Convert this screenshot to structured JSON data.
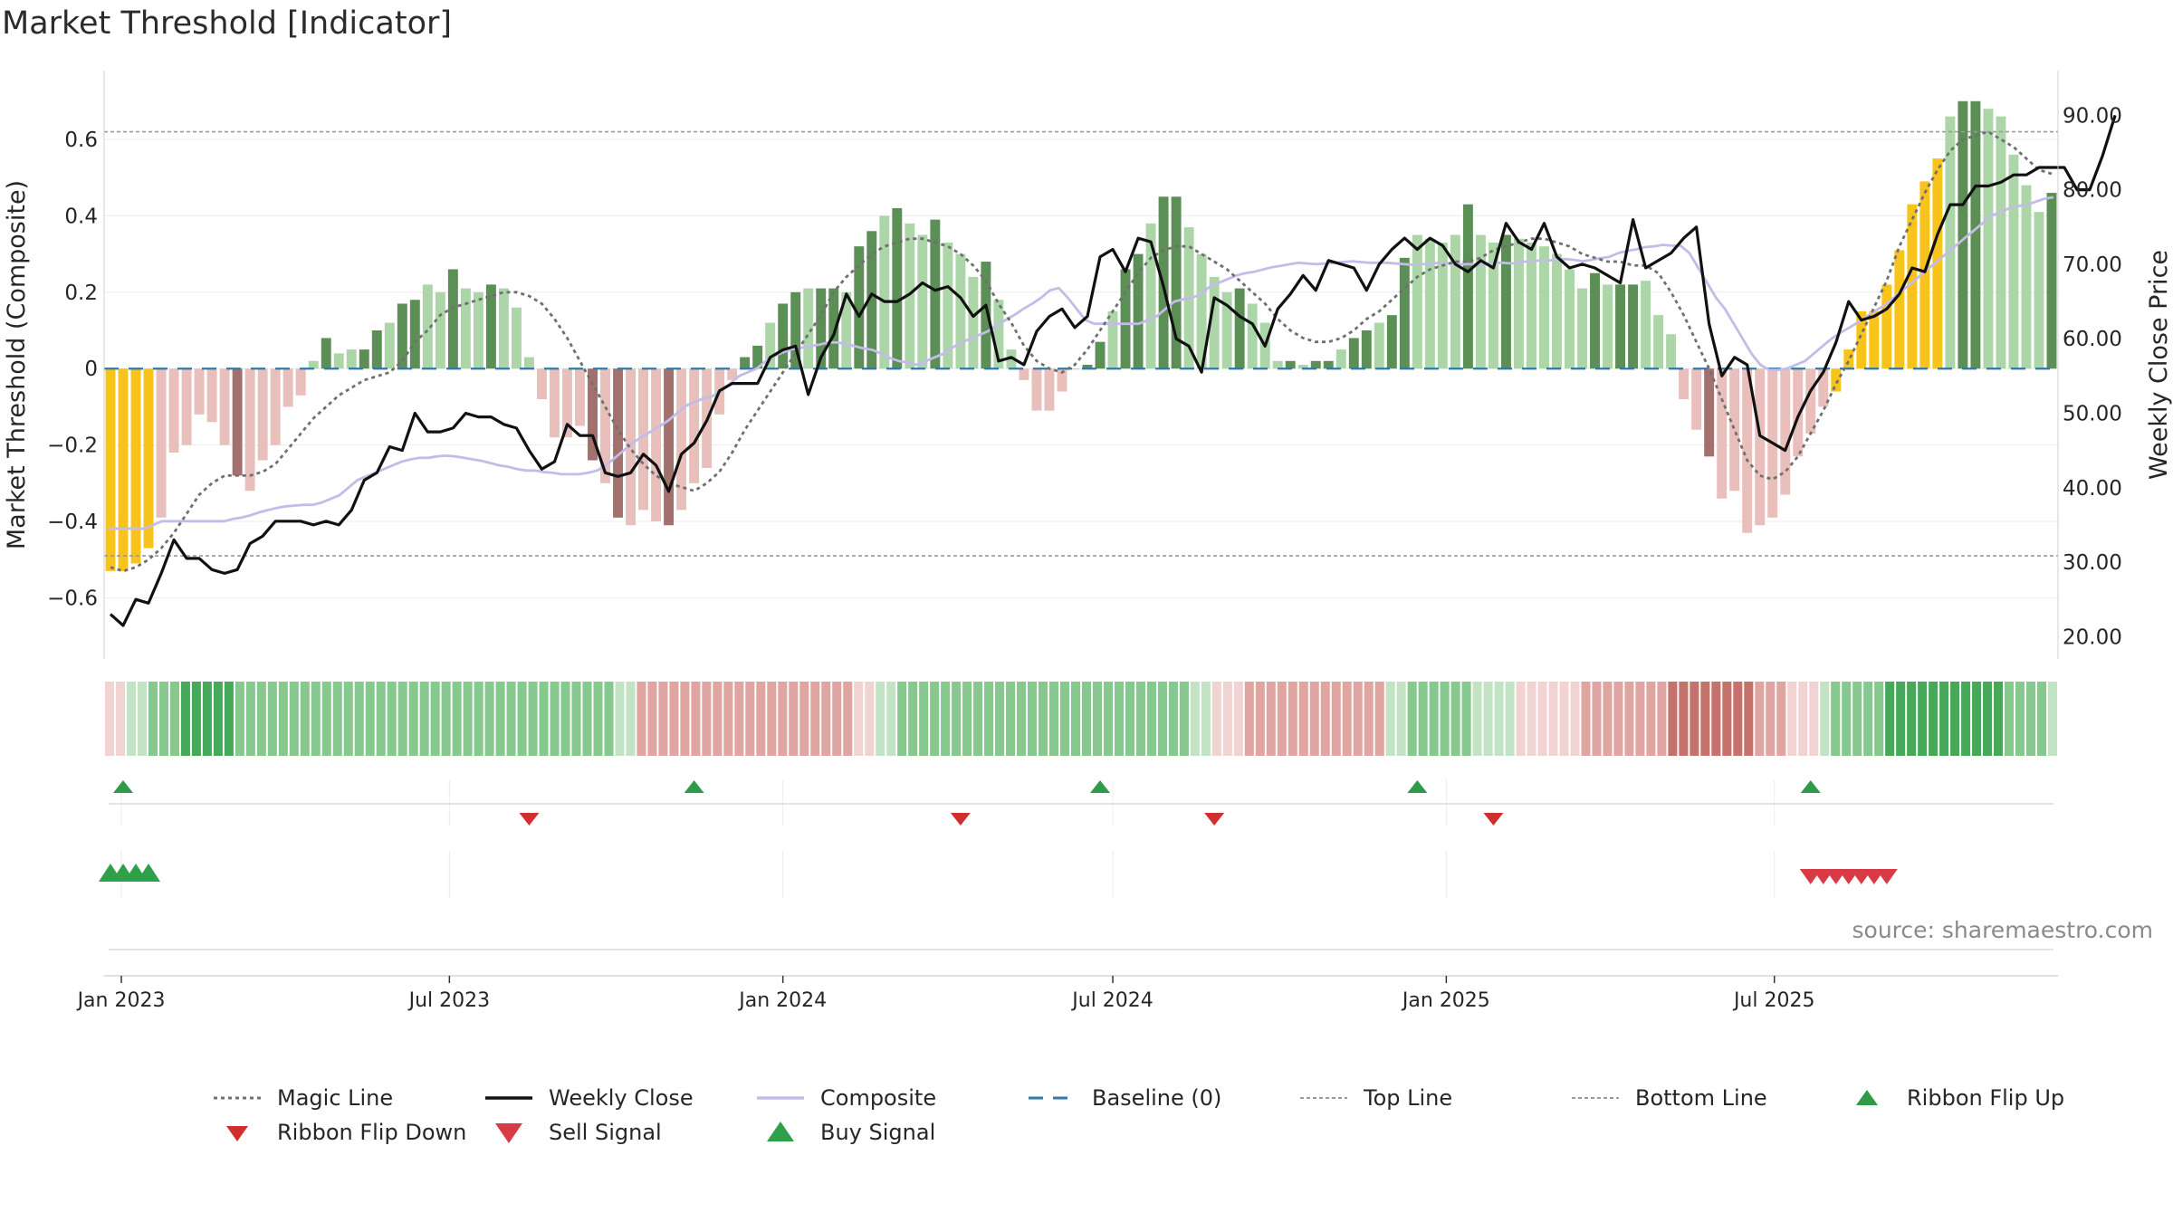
{
  "title": "Market Threshold [Indicator]",
  "source": "source: sharemaestro.com",
  "colors": {
    "gold": "#f8c31a",
    "pos_dark": "#5b8f56",
    "pos_light": "#acd6a8",
    "neg_dark": "#a3716d",
    "neg_light": "#e9bfbc",
    "weekly_close": "#111111",
    "composite": "#c4bce8",
    "magic_line": "#707070",
    "baseline": "#2f79a8",
    "flip_up": "#2f9a49",
    "flip_down": "#d12f2f",
    "sell_signal": "#d83b46",
    "buy_signal": "#2ea04a"
  },
  "chart_data": {
    "type": "bar",
    "title": "Market Threshold [Indicator]",
    "ylabel": "Market Threshold (Composite)",
    "y2label": "Weekly Close Price",
    "ylim": [
      -0.76,
      0.78
    ],
    "y2lim": [
      17,
      96
    ],
    "yticks": [
      0.6,
      0.4,
      0.2,
      0,
      -0.2,
      -0.4,
      -0.6
    ],
    "ytick_labels": [
      "0.6",
      "0.4",
      "0.2",
      "0",
      "−0.2",
      "−0.4",
      "−0.6"
    ],
    "y2ticks": [
      90,
      80,
      70,
      60,
      50,
      40,
      30,
      20
    ],
    "y2tick_labels": [
      "90.00",
      "80.00",
      "70.00",
      "60.00",
      "50.00",
      "40.00",
      "30.00",
      "20.00"
    ],
    "top_line": 0.62,
    "bottom_line": -0.49,
    "x_start": "2022-12-26",
    "xticks": [
      {
        "date": "2023-01-01",
        "label": "Jan 2023"
      },
      {
        "date": "2023-07-01",
        "label": "Jul 2023"
      },
      {
        "date": "2024-01-01",
        "label": "Jan 2024"
      },
      {
        "date": "2024-07-01",
        "label": "Jul 2024"
      },
      {
        "date": "2025-01-01",
        "label": "Jan 2025"
      },
      {
        "date": "2025-07-01",
        "label": "Jul 2025"
      }
    ],
    "composite_bars": [
      -0.53,
      -0.53,
      -0.51,
      -0.47,
      -0.39,
      -0.22,
      -0.2,
      -0.12,
      -0.14,
      -0.2,
      -0.28,
      -0.32,
      -0.24,
      -0.2,
      -0.1,
      -0.07,
      0.02,
      0.08,
      0.04,
      0.05,
      0.05,
      0.1,
      0.12,
      0.17,
      0.18,
      0.22,
      0.2,
      0.26,
      0.21,
      0.2,
      0.22,
      0.21,
      0.16,
      0.03,
      -0.08,
      -0.18,
      -0.18,
      -0.15,
      -0.24,
      -0.3,
      -0.39,
      -0.41,
      -0.37,
      -0.4,
      -0.41,
      -0.37,
      -0.3,
      -0.26,
      -0.12,
      -0.03,
      0.03,
      0.06,
      0.12,
      0.17,
      0.2,
      0.21,
      0.21,
      0.21,
      0.2,
      0.32,
      0.36,
      0.4,
      0.42,
      0.38,
      0.35,
      0.39,
      0.33,
      0.3,
      0.24,
      0.28,
      0.18,
      0.05,
      -0.03,
      -0.11,
      -0.11,
      -0.06,
      0,
      0.01,
      0.07,
      0.15,
      0.26,
      0.3,
      0.38,
      0.45,
      0.45,
      0.37,
      0.3,
      0.24,
      0.2,
      0.21,
      0.17,
      0.12,
      0.02,
      0.02,
      0.01,
      0.02,
      0.02,
      0.05,
      0.08,
      0.1,
      0.12,
      0.14,
      0.29,
      0.35,
      0.34,
      0.33,
      0.35,
      0.43,
      0.35,
      0.33,
      0.35,
      0.34,
      0.33,
      0.32,
      0.3,
      0.26,
      0.21,
      0.25,
      0.22,
      0.22,
      0.22,
      0.23,
      0.14,
      0.09,
      -0.08,
      -0.16,
      -0.23,
      -0.34,
      -0.32,
      -0.43,
      -0.41,
      -0.39,
      -0.33,
      -0.23,
      -0.17,
      -0.1,
      -0.06,
      0.05,
      0.15,
      0.15,
      0.22,
      0.31,
      0.43,
      0.49,
      0.55,
      0.66,
      0.7,
      0.7,
      0.68,
      0.66,
      0.56,
      0.48,
      0.41,
      0.46
    ],
    "weekly_close": [
      23,
      21.5,
      25,
      24.5,
      28.5,
      33,
      30.5,
      30.5,
      29,
      28.5,
      29,
      32.5,
      33.5,
      35.5,
      35.5,
      35.5,
      35,
      35.5,
      35,
      37,
      41,
      42,
      45.5,
      45,
      50,
      47.5,
      47.5,
      48,
      50,
      49.5,
      49.5,
      48.5,
      48,
      45,
      42.5,
      43.5,
      48.5,
      47,
      47,
      42,
      41.5,
      42,
      44.5,
      43,
      39.5,
      44.5,
      46,
      49,
      53,
      54,
      54,
      54,
      57.5,
      58.5,
      59,
      52.5,
      57.5,
      60.5,
      66,
      63,
      66,
      65,
      65,
      66,
      67.5,
      66.5,
      67,
      65.5,
      63,
      64.5,
      57,
      57.5,
      56.5,
      61,
      63,
      64,
      61.5,
      63,
      71,
      72,
      69,
      73.5,
      73,
      67,
      60,
      59,
      55.5,
      65.5,
      64.5,
      63,
      62,
      59,
      64,
      66,
      68.5,
      66.5,
      70.5,
      70,
      69.5,
      66.5,
      70,
      72,
      73.5,
      72,
      73.5,
      72.5,
      70,
      69,
      70.5,
      69.5,
      75.5,
      73,
      72,
      75.5,
      71,
      69.5,
      70,
      69.5,
      68.5,
      67.5,
      76,
      69.5,
      70.5,
      71.5,
      73.5,
      75,
      62,
      55,
      57.5,
      56.5,
      47,
      46,
      45,
      49.5,
      53,
      55.5,
      59.5,
      65,
      62.5,
      63,
      64,
      66,
      69.5,
      69,
      74,
      78,
      78,
      80.5,
      80.5,
      81,
      82,
      82,
      83,
      83,
      83,
      80,
      80,
      84.5,
      90
    ],
    "composite_line": [
      34.5,
      34.5,
      34.5,
      34.5,
      34.5,
      35,
      35.5,
      35.5,
      35.5,
      35.5,
      35.5,
      35.5,
      35.5,
      35.5,
      35.8,
      36,
      36.3,
      36.7,
      37,
      37.3,
      37.5,
      37.6,
      37.7,
      37.7,
      38,
      38.5,
      39,
      40,
      41,
      41.5,
      42,
      42.5,
      43,
      43.5,
      43.8,
      44,
      44,
      44.2,
      44.3,
      44.2,
      44,
      43.8,
      43.6,
      43.3,
      43,
      42.8,
      42.5,
      42.3,
      42.3,
      42.1,
      42,
      41.8,
      41.8,
      41.8,
      42,
      42.3,
      43,
      44,
      45,
      46,
      46.8,
      47.5,
      48.2,
      49,
      50,
      51,
      51.5,
      52,
      52.3,
      53,
      54,
      55,
      55.5,
      56,
      57,
      57.7,
      58.2,
      58.6,
      58.8,
      59,
      59.2,
      59.5,
      59.5,
      59.3,
      59,
      58.7,
      58.5,
      58,
      57.4,
      57,
      56.8,
      56.5,
      57,
      57.5,
      58,
      58.8,
      59.5,
      60,
      60.5,
      61,
      61.8,
      62.5,
      63.2,
      64,
      64.7,
      65.5,
      66.5,
      66.8,
      65.5,
      64,
      62.5,
      62,
      62,
      62,
      62,
      62,
      62,
      62.5,
      63,
      64,
      65,
      65.3,
      65.5,
      66,
      67,
      67.5,
      68,
      68.5,
      68.8,
      69,
      69.3,
      69.6,
      69.8,
      70,
      70.2,
      70.1,
      70,
      70.1,
      70.2,
      70.3,
      70.4,
      70.3,
      70.2,
      70.2,
      70.2,
      70.1,
      70,
      69.9,
      70,
      70.1,
      70.2,
      70.1,
      70,
      70,
      70,
      70.1,
      70.2,
      70.2,
      70.1,
      70.3,
      70.4,
      70.5,
      70.5,
      70.6,
      70.7,
      70.6,
      70.4,
      70.6,
      70.8,
      71,
      71.5,
      71.8,
      72,
      72.3,
      72.4,
      72.6,
      72.5,
      72.5,
      71.5,
      69.5,
      67.5,
      65.5,
      64,
      62,
      60,
      58,
      56.5,
      55.8,
      55.8,
      56,
      56.5,
      57,
      58,
      59,
      60,
      60.8,
      61.5,
      62.2,
      63,
      63.8,
      64.5,
      65.5,
      66.5,
      67.5,
      68.5,
      69.5,
      70.5,
      71.5,
      72.5,
      73.5,
      74.5,
      75.5,
      76.5,
      77,
      77.5,
      77.8,
      78,
      78.4,
      78.8,
      79
    ],
    "magic_line": [
      -0.52,
      -0.53,
      -0.52,
      -0.5,
      -0.47,
      -0.43,
      -0.38,
      -0.33,
      -0.3,
      -0.28,
      -0.28,
      -0.28,
      -0.27,
      -0.25,
      -0.21,
      -0.17,
      -0.13,
      -0.1,
      -0.07,
      -0.05,
      -0.03,
      -0.02,
      -0.01,
      0.02,
      0.07,
      0.1,
      0.14,
      0.16,
      0.17,
      0.18,
      0.19,
      0.2,
      0.2,
      0.19,
      0.17,
      0.13,
      0.08,
      0.02,
      -0.04,
      -0.1,
      -0.16,
      -0.21,
      -0.25,
      -0.28,
      -0.3,
      -0.31,
      -0.32,
      -0.3,
      -0.27,
      -0.22,
      -0.16,
      -0.11,
      -0.06,
      -0.01,
      0.04,
      0.09,
      0.14,
      0.2,
      0.24,
      0.27,
      0.3,
      0.32,
      0.33,
      0.34,
      0.34,
      0.33,
      0.32,
      0.3,
      0.27,
      0.23,
      0.17,
      0.12,
      0.06,
      0.02,
      0,
      -0.01,
      0.01,
      0.05,
      0.1,
      0.15,
      0.2,
      0.25,
      0.29,
      0.31,
      0.32,
      0.32,
      0.3,
      0.28,
      0.26,
      0.23,
      0.2,
      0.17,
      0.13,
      0.1,
      0.08,
      0.07,
      0.07,
      0.08,
      0.1,
      0.13,
      0.15,
      0.18,
      0.21,
      0.24,
      0.26,
      0.27,
      0.28,
      0.28,
      0.29,
      0.31,
      0.32,
      0.33,
      0.34,
      0.34,
      0.33,
      0.32,
      0.3,
      0.29,
      0.28,
      0.28,
      0.27,
      0.27,
      0.25,
      0.2,
      0.14,
      0.07,
      0,
      -0.08,
      -0.16,
      -0.24,
      -0.28,
      -0.29,
      -0.27,
      -0.23,
      -0.17,
      -0.11,
      -0.04,
      0.02,
      0.09,
      0.16,
      0.23,
      0.32,
      0.39,
      0.46,
      0.52,
      0.57,
      0.6,
      0.61,
      0.62,
      0.6,
      0.58,
      0.55,
      0.52,
      0.51
    ],
    "ribbon": [
      -1,
      -1,
      1,
      1,
      2,
      2,
      2,
      3,
      3,
      3,
      3,
      3,
      2,
      2,
      2,
      2,
      2,
      2,
      2,
      2,
      2,
      2,
      2,
      2,
      2,
      2,
      2,
      2,
      2,
      2,
      2,
      2,
      2,
      2,
      2,
      2,
      2,
      2,
      2,
      2,
      2,
      2,
      2,
      2,
      2,
      2,
      2,
      1,
      1,
      -2,
      -2,
      -2,
      -2,
      -2,
      -2,
      -2,
      -2,
      -2,
      -2,
      -2,
      -2,
      -2,
      -2,
      -2,
      -2,
      -2,
      -2,
      -2,
      -2,
      -1,
      -1,
      1,
      1,
      2,
      2,
      2,
      2,
      2,
      2,
      2,
      2,
      2,
      2,
      2,
      2,
      2,
      2,
      2,
      2,
      2,
      2,
      2,
      2,
      2,
      2,
      2,
      2,
      2,
      2,
      2,
      1,
      1,
      -1,
      -1,
      -1,
      -2,
      -2,
      -2,
      -2,
      -2,
      -2,
      -2,
      -2,
      -2,
      -2,
      -2,
      -2,
      -2,
      1,
      1,
      2,
      2,
      2,
      2,
      2,
      2,
      1,
      1,
      1,
      1,
      -1,
      -1,
      -1,
      -1,
      -1,
      -1,
      -2,
      -2,
      -2,
      -2,
      -2,
      -2,
      -2,
      -2,
      -3,
      -3,
      -3,
      -3,
      -3,
      -3,
      -3,
      -3,
      -2,
      -2,
      -2,
      -1,
      -1,
      -1,
      1,
      2,
      2,
      2,
      2,
      2,
      3,
      3,
      3,
      3,
      3,
      3,
      3,
      3,
      3,
      3,
      3,
      2,
      2,
      2,
      2,
      1
    ],
    "ribbon_flip_up_weeks": [
      1,
      46,
      78,
      103,
      134
    ],
    "ribbon_flip_down_weeks": [
      33,
      67,
      87,
      109
    ],
    "buy_signal_weeks": [
      0,
      1,
      2,
      3
    ],
    "sell_signal_weeks": [
      134,
      135,
      136,
      137,
      138,
      139,
      140
    ]
  },
  "legend": [
    {
      "key": "magic",
      "label": "Magic Line"
    },
    {
      "key": "close",
      "label": "Weekly Close"
    },
    {
      "key": "composite",
      "label": "Composite"
    },
    {
      "key": "baseline",
      "label": "Baseline (0)"
    },
    {
      "key": "topline",
      "label": "Top Line"
    },
    {
      "key": "bottomline",
      "label": "Bottom Line"
    },
    {
      "key": "flipup",
      "label": "Ribbon Flip Up"
    },
    {
      "key": "flipdown",
      "label": "Ribbon Flip Down"
    },
    {
      "key": "sell",
      "label": "Sell Signal"
    },
    {
      "key": "buy",
      "label": "Buy Signal"
    }
  ]
}
